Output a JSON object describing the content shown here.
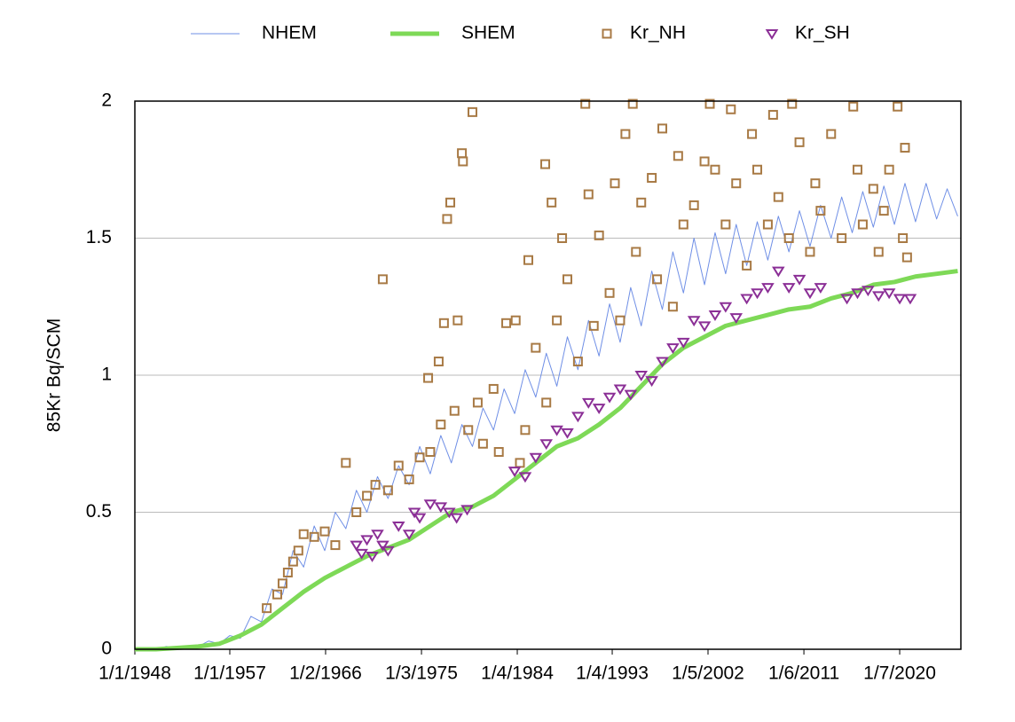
{
  "chart_data": {
    "type": "line",
    "y_label": "85Kr Bq/SCM",
    "legend": "top",
    "grid": true,
    "xlim": [
      1948,
      2026.3
    ],
    "ylim": [
      0,
      2
    ],
    "yticks": [
      0,
      0.5,
      1,
      1.5,
      2
    ],
    "xticks": [
      {
        "value": 1948.0,
        "label": "1/1/1948"
      },
      {
        "value": 1957.0,
        "label": "1/1/1957"
      },
      {
        "value": 1966.08,
        "label": "1/2/1966"
      },
      {
        "value": 1975.17,
        "label": "1/3/1975"
      },
      {
        "value": 1984.25,
        "label": "1/4/1984"
      },
      {
        "value": 1993.25,
        "label": "1/4/1993"
      },
      {
        "value": 2002.33,
        "label": "1/5/2002"
      },
      {
        "value": 2011.42,
        "label": "1/6/2011"
      },
      {
        "value": 2020.5,
        "label": "1/7/2020"
      }
    ],
    "series": [
      {
        "name": "NHEM",
        "color": "#6f8fe6",
        "mark": "line",
        "width": 1,
        "x": [
          1948,
          1949,
          1950,
          1951,
          1952,
          1953,
          1954,
          1955,
          1956,
          1957,
          1958,
          1959,
          1960,
          1961,
          1962,
          1963,
          1964,
          1965,
          1966,
          1967,
          1968,
          1969,
          1970,
          1971,
          1972,
          1973,
          1974,
          1975,
          1976,
          1977,
          1978,
          1979,
          1980,
          1981,
          1982,
          1983,
          1984,
          1985,
          1986,
          1987,
          1988,
          1989,
          1990,
          1991,
          1992,
          1993,
          1994,
          1995,
          1996,
          1997,
          1998,
          1999,
          2000,
          2001,
          2002,
          2003,
          2004,
          2005,
          2006,
          2007,
          2008,
          2009,
          2010,
          2011,
          2012,
          2013,
          2014,
          2015,
          2016,
          2017,
          2018,
          2019,
          2020,
          2021,
          2022,
          2023,
          2024,
          2025,
          2026
        ],
        "values": [
          0,
          0,
          0,
          0.01,
          0,
          0.01,
          0.01,
          0.03,
          0.02,
          0.05,
          0.04,
          0.12,
          0.1,
          0.22,
          0.2,
          0.36,
          0.3,
          0.45,
          0.36,
          0.5,
          0.44,
          0.58,
          0.5,
          0.63,
          0.55,
          0.67,
          0.6,
          0.74,
          0.64,
          0.78,
          0.68,
          0.82,
          0.74,
          0.88,
          0.8,
          0.95,
          0.86,
          1.02,
          0.92,
          1.08,
          0.96,
          1.14,
          1.02,
          1.2,
          1.07,
          1.26,
          1.12,
          1.32,
          1.18,
          1.38,
          1.24,
          1.45,
          1.3,
          1.5,
          1.33,
          1.52,
          1.37,
          1.55,
          1.4,
          1.56,
          1.42,
          1.58,
          1.45,
          1.6,
          1.47,
          1.62,
          1.5,
          1.65,
          1.52,
          1.67,
          1.54,
          1.69,
          1.55,
          1.7,
          1.56,
          1.7,
          1.57,
          1.68,
          1.58
        ]
      },
      {
        "name": "SHEM",
        "color": "#7ed957",
        "mark": "line",
        "width": 5,
        "x": [
          1948,
          1950,
          1952,
          1954,
          1956,
          1958,
          1960,
          1962,
          1964,
          1966,
          1968,
          1970,
          1972,
          1974,
          1976,
          1978,
          1980,
          1982,
          1984,
          1986,
          1988,
          1990,
          1992,
          1994,
          1996,
          1998,
          2000,
          2002,
          2004,
          2006,
          2008,
          2010,
          2012,
          2014,
          2016,
          2018,
          2020,
          2022,
          2024,
          2026
        ],
        "values": [
          0,
          0,
          0.005,
          0.01,
          0.02,
          0.05,
          0.09,
          0.15,
          0.21,
          0.26,
          0.3,
          0.34,
          0.37,
          0.4,
          0.45,
          0.5,
          0.52,
          0.56,
          0.62,
          0.68,
          0.74,
          0.77,
          0.82,
          0.88,
          0.96,
          1.04,
          1.1,
          1.14,
          1.18,
          1.2,
          1.22,
          1.24,
          1.25,
          1.28,
          1.3,
          1.33,
          1.34,
          1.36,
          1.37,
          1.38
        ]
      },
      {
        "name": "Kr_NH",
        "color": "#a87a45",
        "mark": "square",
        "x": [
          1960.5,
          1961.5,
          1962,
          1962.5,
          1963,
          1963.5,
          1964,
          1965,
          1966,
          1967,
          1968,
          1969,
          1970,
          1970.8,
          1971.5,
          1972,
          1973,
          1974,
          1975,
          1975.8,
          1976,
          1976.8,
          1977,
          1977.3,
          1977.6,
          1977.9,
          1978.3,
          1978.6,
          1979,
          1979.1,
          1979.6,
          1980,
          1980.5,
          1981,
          1982,
          1982.5,
          1983.2,
          1984.1,
          1984.5,
          1985,
          1985.3,
          1986,
          1986.9,
          1987,
          1987.5,
          1988,
          1988.5,
          1989,
          1990,
          1990.7,
          1991,
          1991.5,
          1992,
          1993,
          1993.5,
          1994,
          1994.5,
          1995.2,
          1995.5,
          1996,
          1997,
          1997.5,
          1998,
          1999,
          1999.5,
          2000,
          2001,
          2002,
          2002.5,
          2003,
          2004,
          2004.5,
          2005,
          2006,
          2006.5,
          2007,
          2008,
          2008.5,
          2009,
          2010,
          2010.3,
          2011,
          2012,
          2012.5,
          2013,
          2014,
          2015,
          2016.1,
          2016.5,
          2017,
          2018,
          2018.5,
          2019,
          2019.5,
          2020.3,
          2020.8,
          2021,
          2021.2
        ],
        "values": [
          0.15,
          0.2,
          0.24,
          0.28,
          0.32,
          0.36,
          0.42,
          0.41,
          0.43,
          0.38,
          0.68,
          0.5,
          0.56,
          0.6,
          1.35,
          0.58,
          0.67,
          0.62,
          0.7,
          0.99,
          0.72,
          1.05,
          0.82,
          1.19,
          1.57,
          1.63,
          0.87,
          1.2,
          1.81,
          1.78,
          0.8,
          1.96,
          0.9,
          0.75,
          0.95,
          0.72,
          1.19,
          1.2,
          0.68,
          0.8,
          1.42,
          1.1,
          1.77,
          0.9,
          1.63,
          1.2,
          1.5,
          1.35,
          1.05,
          1.99,
          1.66,
          1.18,
          1.51,
          1.3,
          1.7,
          1.2,
          1.88,
          1.99,
          1.45,
          1.63,
          1.72,
          1.35,
          1.9,
          1.25,
          1.8,
          1.55,
          1.62,
          1.78,
          1.99,
          1.75,
          1.55,
          1.97,
          1.7,
          1.4,
          1.88,
          1.75,
          1.55,
          1.95,
          1.65,
          1.5,
          1.99,
          1.85,
          1.45,
          1.7,
          1.6,
          1.88,
          1.5,
          1.98,
          1.75,
          1.55,
          1.68,
          1.45,
          1.6,
          1.75,
          1.98,
          1.5,
          1.83,
          1.43
        ]
      },
      {
        "name": "Kr_SH",
        "color": "#8b2f96",
        "mark": "triangle",
        "x": [
          1969,
          1969.5,
          1970,
          1970.5,
          1971,
          1971.5,
          1972,
          1973,
          1974,
          1974.5,
          1975,
          1976,
          1977,
          1977.8,
          1978.5,
          1979.5,
          1984,
          1985,
          1986,
          1987,
          1988,
          1989,
          1990,
          1991,
          1992,
          1993,
          1994,
          1995,
          1996,
          1997,
          1998,
          1999,
          2000,
          2001,
          2002,
          2003,
          2004,
          2005,
          2006,
          2007,
          2008,
          2009,
          2010,
          2011,
          2012,
          2013,
          2015.5,
          2016.5,
          2017.5,
          2018.5,
          2019.5,
          2020.5,
          2021.5
        ],
        "values": [
          0.38,
          0.35,
          0.4,
          0.34,
          0.42,
          0.38,
          0.36,
          0.45,
          0.42,
          0.5,
          0.48,
          0.53,
          0.52,
          0.5,
          0.48,
          0.51,
          0.65,
          0.63,
          0.7,
          0.75,
          0.8,
          0.79,
          0.85,
          0.9,
          0.88,
          0.92,
          0.95,
          0.93,
          1.0,
          0.98,
          1.05,
          1.1,
          1.12,
          1.2,
          1.18,
          1.22,
          1.25,
          1.21,
          1.28,
          1.3,
          1.32,
          1.38,
          1.32,
          1.35,
          1.3,
          1.32,
          1.28,
          1.3,
          1.31,
          1.29,
          1.3,
          1.28,
          1.28
        ]
      }
    ]
  }
}
